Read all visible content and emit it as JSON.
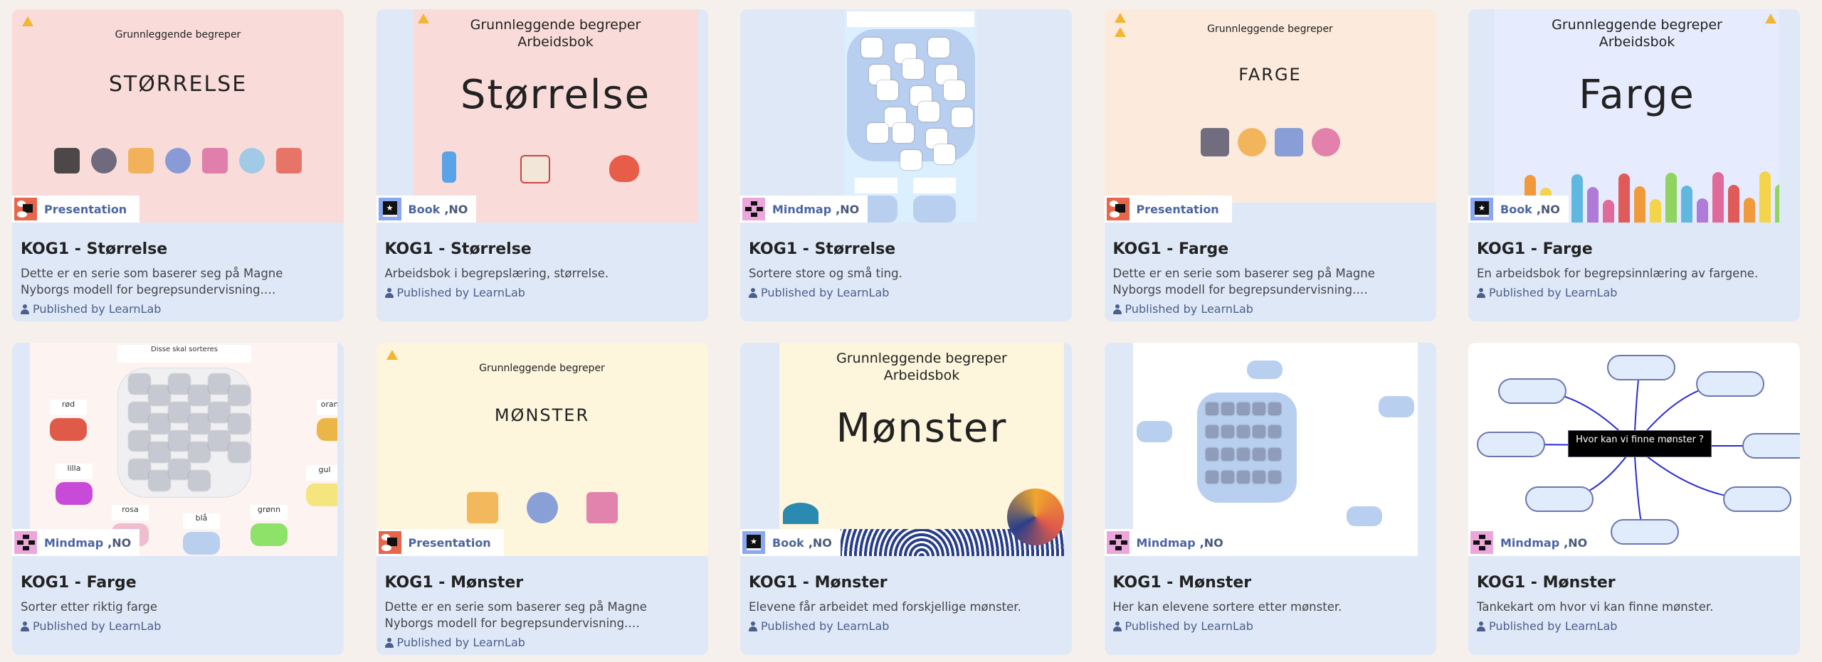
{
  "colors": {
    "page_bg": "#f5f0eb",
    "card_bg": "#dfe8f7",
    "badge_text": "#4b64a3",
    "published_text": "#4a5f8c",
    "presentation_icon": "#e8664c",
    "book_icon": "#8aa8f2",
    "mindmap_icon": "#eba6dc"
  },
  "published_icon": "person-icon",
  "cards": [
    {
      "type": "Presentation",
      "lang": "",
      "title": "KOG1 - Størrelse",
      "description": "Dette er en serie som baserer seg på Magne Nyborgs modell for begrepsundervisning. Begrepstrening er...",
      "published": "Published by LearnLab",
      "thumb": {
        "kind": "slide",
        "bg": "#f9dcd9",
        "top": "Grunnleggende begreper",
        "big": "STØRRELSE",
        "warnings": 1
      }
    },
    {
      "type": "Book",
      "lang": ",NO",
      "title": "KOG1 - Størrelse",
      "description": "Arbeidsbok i begrepslæring, størrelse.",
      "published": "Published by LearnLab",
      "thumb": {
        "kind": "book",
        "bg": "#f9dcd9",
        "top": "Grunnleggende begreper",
        "sub": "Arbeidsbok",
        "big": "Størrelse",
        "warnings": 1
      }
    },
    {
      "type": "Mindmap",
      "lang": ",NO",
      "title": "KOG1 - Størrelse",
      "description": "Sortere store og små ting.",
      "published": "Published by LearnLab",
      "thumb": {
        "kind": "sort-small",
        "bg": "#dcefff"
      }
    },
    {
      "type": "Presentation",
      "lang": "",
      "title": "KOG1 - Farge",
      "description": "Dette er en serie som baserer seg på Magne Nyborgs modell for begrepsundervisning. Begrepstrening er...",
      "published": "Published by LearnLab",
      "thumb": {
        "kind": "slide",
        "bg": "#fcebdd",
        "top": "Grunnleggende begreper",
        "big": "FARGE",
        "warnings": 2
      }
    },
    {
      "type": "Book",
      "lang": ",NO",
      "title": "KOG1 - Farge",
      "description": "En arbeidsbok for begrepsinnlæring av fargene.",
      "published": "Published by LearnLab",
      "thumb": {
        "kind": "book",
        "bg": "#e6ebfd",
        "top": "Grunnleggende begreper",
        "sub": "Arbeidsbok",
        "big": "Farge",
        "warnings": 1
      }
    },
    {
      "type": "Mindmap",
      "lang": ",NO",
      "title": "KOG1 - Farge",
      "description": "Sorter etter riktig farge",
      "published": "Published by LearnLab",
      "thumb": {
        "kind": "sort-color",
        "bg": "#fdf3f1",
        "header": "Disse skal sorteres",
        "groups": [
          {
            "label": "rød",
            "color": "#e05a4a"
          },
          {
            "label": "oransje",
            "color": "#ecb548"
          },
          {
            "label": "lilla",
            "color": "#c84ad8"
          },
          {
            "label": "gul",
            "color": "#f4e57e"
          },
          {
            "label": "rosa",
            "color": "#efbcd0"
          },
          {
            "label": "blå",
            "color": "#b9cfee"
          },
          {
            "label": "grønn",
            "color": "#8ee26a"
          }
        ]
      }
    },
    {
      "type": "Presentation",
      "lang": "",
      "title": "KOG1 - Mønster",
      "description": "Dette er en serie som baserer seg på Magne Nyborgs modell for begrepsundervisning. Begrepstrening er...",
      "published": "Published by LearnLab",
      "thumb": {
        "kind": "slide",
        "bg": "#fdf5dc",
        "top": "Grunnleggende begreper",
        "big": "MØNSTER",
        "warnings": 1
      }
    },
    {
      "type": "Book",
      "lang": ",NO",
      "title": "KOG1 - Mønster",
      "description": "Elevene får arbeidet med forskjellige mønster.",
      "published": "Published by LearnLab",
      "thumb": {
        "kind": "book",
        "bg": "#fdf5dc",
        "top": "Grunnleggende begreper",
        "sub": "Arbeidsbok",
        "big": "Mønster",
        "warnings": 0
      }
    },
    {
      "type": "Mindmap",
      "lang": ",NO",
      "title": "KOG1 - Mønster",
      "description": "Her kan elevene sortere etter mønster.",
      "published": "Published by LearnLab",
      "thumb": {
        "kind": "sort-pattern",
        "bg": "#ffffff"
      }
    },
    {
      "type": "Mindmap",
      "lang": ",NO",
      "title": "KOG1 - Mønster",
      "description": "Tankekart om hvor vi kan finne mønster.",
      "published": "Published by LearnLab",
      "thumb": {
        "kind": "mindmap",
        "bg": "#ffffff",
        "center": "Hvor kan vi finne mønster ?"
      }
    }
  ]
}
